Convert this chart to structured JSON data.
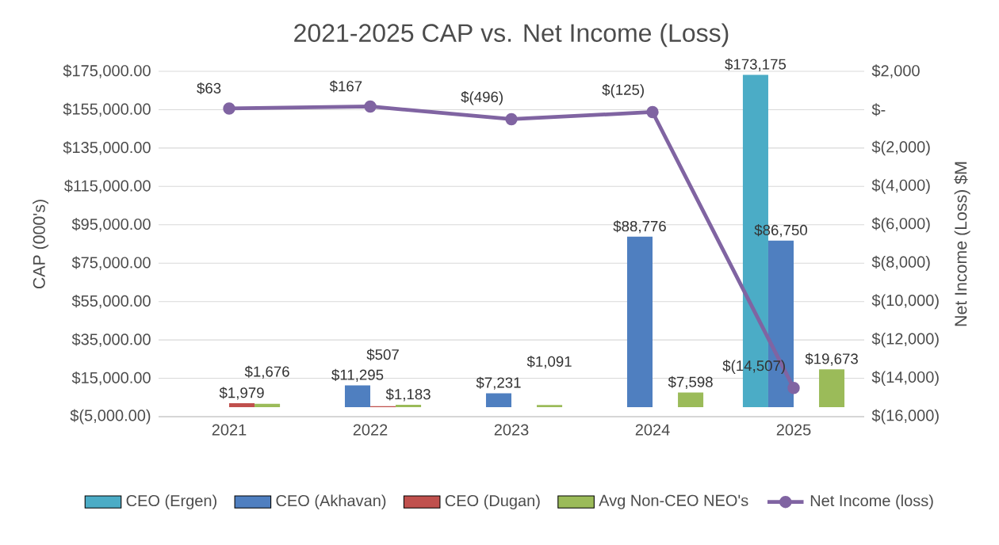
{
  "chart_data": {
    "type": "bar",
    "title": "2021-2025 CAP vs. Net Income (Loss)",
    "ylabel": "CAP (000's)",
    "y2label": "Net Income (Loss) $M",
    "categories": [
      "2021",
      "2022",
      "2023",
      "2024",
      "2025"
    ],
    "series": [
      {
        "name": "CEO (Ergen)",
        "color": "#4bacc6",
        "values": [
          null,
          null,
          null,
          null,
          173175
        ],
        "value_labels": [
          null,
          null,
          null,
          null,
          "$173,175"
        ]
      },
      {
        "name": "CEO (Akhavan)",
        "color": "#4f7fc0",
        "values": [
          null,
          11295,
          7231,
          88776,
          86750
        ],
        "value_labels": [
          null,
          "$11,295",
          "$7,231",
          "$88,776",
          "$86,750"
        ]
      },
      {
        "name": "CEO (Dugan)",
        "color": "#c0504d",
        "values": [
          1979,
          507,
          null,
          null,
          null
        ],
        "value_labels": [
          "$1,979",
          "$507",
          null,
          null,
          null
        ]
      },
      {
        "name": "Avg Non-CEO NEO's",
        "color": "#9bbb59",
        "values": [
          1676,
          1183,
          1091,
          7598,
          19673
        ],
        "value_labels": [
          "$1,676",
          "$1,183",
          "$1,091",
          "$7,598",
          "$19,673"
        ]
      },
      {
        "name": "Net Income (loss)",
        "type": "line",
        "axis": "y2",
        "color": "#8064a2",
        "marker": "circle",
        "values": [
          63,
          167,
          -496,
          -125,
          -14507
        ],
        "value_labels": [
          "$63",
          "$167",
          "$(496)",
          "$(125)",
          "$(14,507)"
        ]
      }
    ],
    "ylim": [
      -5000,
      175000
    ],
    "yticks": [
      {
        "value": -5000,
        "label": "$(5,000.00)"
      },
      {
        "value": 15000,
        "label": "$15,000.00"
      },
      {
        "value": 35000,
        "label": "$35,000.00"
      },
      {
        "value": 55000,
        "label": "$55,000.00"
      },
      {
        "value": 75000,
        "label": "$75,000.00"
      },
      {
        "value": 95000,
        "label": "$95,000.00"
      },
      {
        "value": 115000,
        "label": "$115,000.00"
      },
      {
        "value": 135000,
        "label": "$135,000.00"
      },
      {
        "value": 155000,
        "label": "$155,000.00"
      },
      {
        "value": 175000,
        "label": "$175,000.00"
      }
    ],
    "y2lim": [
      -16000,
      2000
    ],
    "y2ticks": [
      {
        "value": -16000,
        "label": "$(16,000)"
      },
      {
        "value": -14000,
        "label": "$(14,000)"
      },
      {
        "value": -12000,
        "label": "$(12,000)"
      },
      {
        "value": -10000,
        "label": "$(10,000)"
      },
      {
        "value": -8000,
        "label": "$(8,000)"
      },
      {
        "value": -6000,
        "label": "$(6,000)"
      },
      {
        "value": -4000,
        "label": "$(4,000)"
      },
      {
        "value": -2000,
        "label": "$(2,000)"
      },
      {
        "value": 0,
        "label": "$-"
      },
      {
        "value": 2000,
        "label": "$2,000"
      }
    ],
    "grid": "y",
    "legend": "bottom"
  }
}
